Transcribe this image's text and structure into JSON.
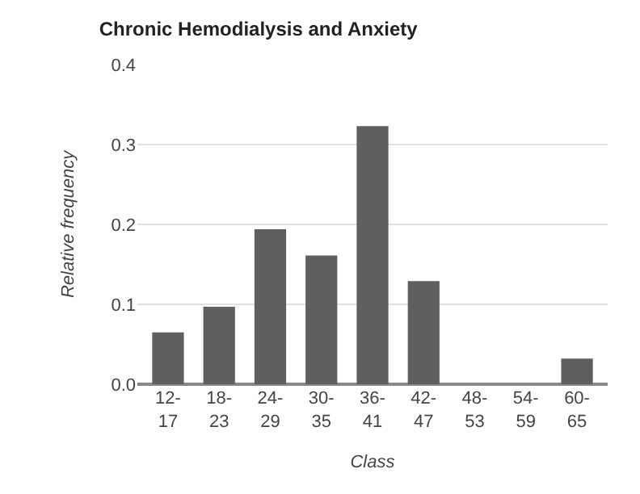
{
  "chart_data": {
    "type": "bar",
    "title": "Chronic Hemodialysis and Anxiety",
    "xlabel": "Class",
    "ylabel": "Relative frequency",
    "categories": [
      "12-17",
      "18-23",
      "24-29",
      "30-35",
      "36-41",
      "42-47",
      "48-53",
      "54-59",
      "60-65"
    ],
    "values": [
      0.065,
      0.097,
      0.194,
      0.161,
      0.323,
      0.129,
      0,
      0,
      0.032
    ],
    "color": "#5f5f5f",
    "ylim": [
      0,
      0.4
    ],
    "yticks": [
      {
        "value": 0,
        "label": "0.0"
      },
      {
        "value": 0.1,
        "label": "0.1"
      },
      {
        "value": 0.2,
        "label": "0.2"
      },
      {
        "value": 0.3,
        "label": "0.3"
      },
      {
        "value": 0.4,
        "label": "0.4"
      }
    ],
    "grid": "y"
  }
}
